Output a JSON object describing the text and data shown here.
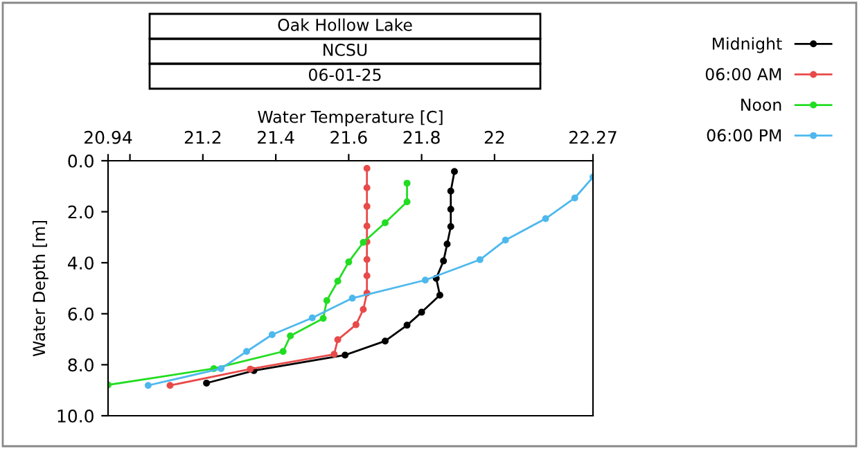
{
  "chart_data": {
    "type": "line",
    "title": "Oak Hollow Lake",
    "subtitle": "NCSU",
    "annotations": [
      "06-01-25"
    ],
    "xlabel": "Water Temperature [C]",
    "ylabel": "Water Depth [m]",
    "xlim": [
      20.94,
      22.27
    ],
    "xticks": [
      20.94,
      {
        "value": 21.0,
        "label": null
      },
      21.2,
      21.4,
      21.6,
      21.8,
      22,
      22.27
    ],
    "ylim": [
      10,
      0
    ],
    "yticks": [
      {
        "value": 0,
        "label": "0.0"
      },
      {
        "value": 2,
        "label": "2.0"
      },
      {
        "value": 4,
        "label": "4.0"
      },
      {
        "value": 6,
        "label": "6.0"
      },
      {
        "value": 8,
        "label": "8.0"
      },
      {
        "value": 10,
        "label": "10.0"
      }
    ],
    "marker": "circle",
    "line_style": "solid",
    "legend": "top right",
    "grid": false,
    "series": [
      {
        "name": "Midnight",
        "color": "#000000",
        "x": [
          21.89,
          21.88,
          21.88,
          21.88,
          21.87,
          21.86,
          21.84,
          21.85,
          21.8,
          21.76,
          21.7,
          21.59,
          21.34,
          21.21
        ],
        "values": [
          0.42,
          1.19,
          1.9,
          2.58,
          3.27,
          3.93,
          4.61,
          5.27,
          5.94,
          6.45,
          7.07,
          7.62,
          8.23,
          8.72
        ]
      },
      {
        "name": "06:00 AM",
        "color": "#e84a4a",
        "x": [
          21.65,
          21.65,
          21.65,
          21.65,
          21.65,
          21.65,
          21.65,
          21.65,
          21.64,
          21.62,
          21.57,
          21.56,
          21.33,
          21.11
        ],
        "values": [
          0.3,
          1.06,
          1.79,
          2.56,
          3.18,
          3.87,
          4.51,
          5.19,
          5.83,
          6.43,
          7.02,
          7.59,
          8.17,
          8.81
        ]
      },
      {
        "name": "Noon",
        "color": "#22dd22",
        "x": [
          21.76,
          21.76,
          21.7,
          21.64,
          21.6,
          21.57,
          21.54,
          21.53,
          21.44,
          21.42,
          21.23,
          20.94
        ],
        "values": [
          0.88,
          1.61,
          2.43,
          3.2,
          3.97,
          4.72,
          5.48,
          6.18,
          6.87,
          7.48,
          8.15,
          8.79
        ]
      },
      {
        "name": "06:00 PM",
        "color": "#4db8ee",
        "x": [
          22.27,
          22.22,
          22.14,
          22.03,
          21.96,
          21.81,
          21.61,
          21.5,
          21.39,
          21.32,
          21.25,
          21.05
        ],
        "values": [
          0.64,
          1.46,
          2.27,
          3.11,
          3.88,
          4.68,
          5.39,
          6.16,
          6.82,
          7.48,
          8.15,
          8.81
        ]
      }
    ]
  }
}
